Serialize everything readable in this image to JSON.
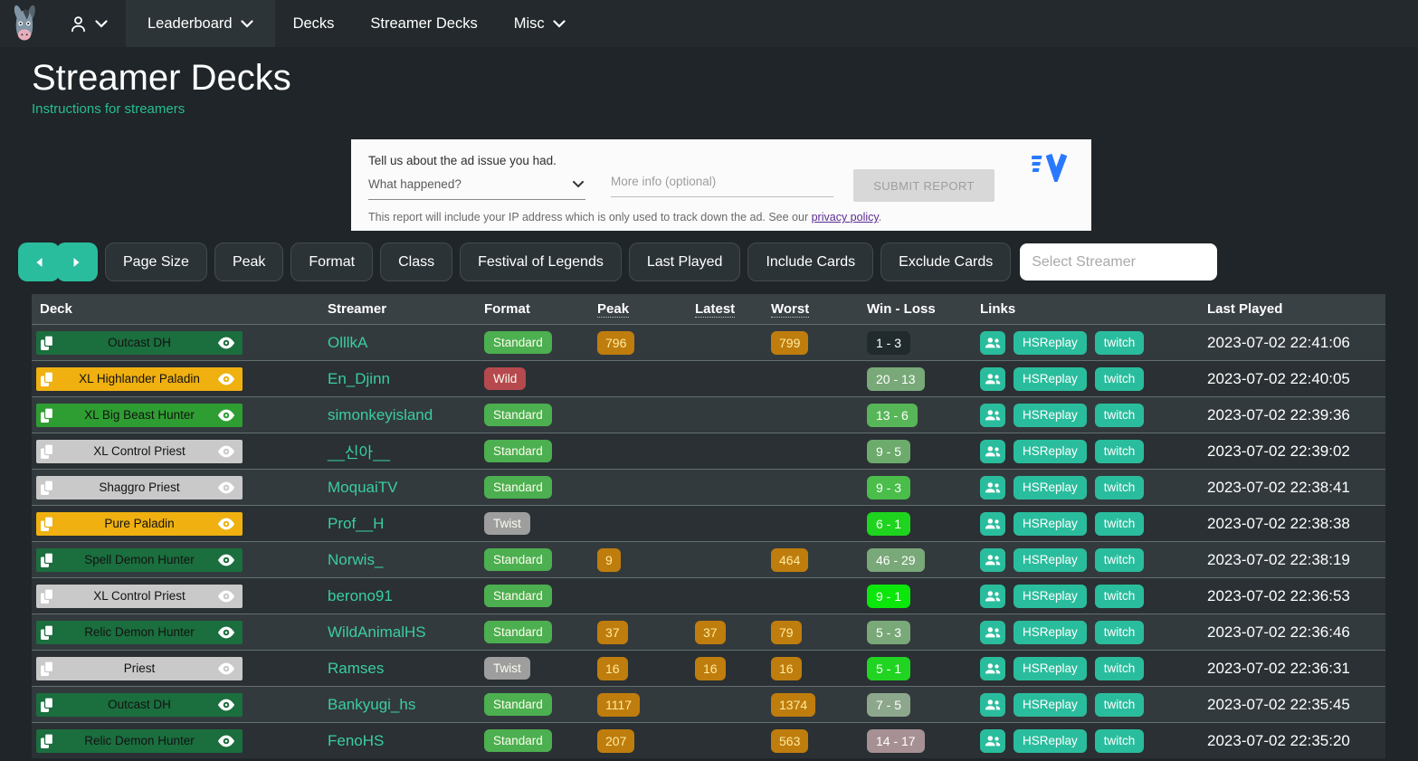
{
  "navbar": {
    "items": [
      {
        "label": "Leaderboard",
        "dropdown": true,
        "active": true
      },
      {
        "label": "Decks",
        "dropdown": false,
        "active": false
      },
      {
        "label": "Streamer Decks",
        "dropdown": false,
        "active": false
      },
      {
        "label": "Misc",
        "dropdown": true,
        "active": false
      }
    ]
  },
  "header": {
    "title": "Streamer Decks",
    "instructions_link": "Instructions for streamers"
  },
  "ad_report": {
    "prompt": "Tell us about the ad issue you had.",
    "select_placeholder": "What happened?",
    "input_placeholder": "More info (optional)",
    "submit_label": "SUBMIT REPORT",
    "disclaimer_prefix": "This report will include your IP address which is only used to track down the ad. See our ",
    "privacy_link": "privacy policy",
    "disclaimer_suffix": "."
  },
  "filters": {
    "buttons": [
      "Page Size",
      "Peak",
      "Format",
      "Class",
      "Festival of Legends",
      "Last Played",
      "Include Cards",
      "Exclude Cards"
    ],
    "streamer_placeholder": "Select Streamer"
  },
  "colors": {
    "accent_teal": "#2abd9d",
    "streamer_link": "#3acda2",
    "stat_pill_bg": "#bf7d0d",
    "stat_pill_text": "#ffeb9e",
    "format_standard": "#4caf50",
    "format_wild": "#b5494e",
    "format_twist": "#9e9e9e"
  },
  "table": {
    "columns": [
      "Deck",
      "Streamer",
      "Format",
      "Peak",
      "Latest",
      "Worst",
      "Win - Loss",
      "Links",
      "Last Played"
    ],
    "link_labels": {
      "hsreplay": "HSReplay",
      "twitch": "twitch"
    },
    "rows": [
      {
        "deck": "Outcast DH",
        "deck_color": "#1b6e3e",
        "streamer": "OlllkA",
        "format": "Standard",
        "format_color": "#4caf50",
        "peak": "796",
        "latest": "",
        "worst": "799",
        "win_loss": "1 - 3",
        "win_loss_color": "#212a2c",
        "last_played": "2023-07-02 22:41:06"
      },
      {
        "deck": "XL Highlander Paladin",
        "deck_color": "#efb010",
        "streamer": "En_Djinn",
        "format": "Wild",
        "format_color": "#b5494e",
        "peak": "",
        "latest": "",
        "worst": "",
        "win_loss": "20 - 13",
        "win_loss_color": "#79a879",
        "last_played": "2023-07-02 22:40:05"
      },
      {
        "deck": "XL Big Beast Hunter",
        "deck_color": "#2f9e32",
        "streamer": "simonkeyisland",
        "format": "Standard",
        "format_color": "#4caf50",
        "peak": "",
        "latest": "",
        "worst": "",
        "win_loss": "13 - 6",
        "win_loss_color": "#57b657",
        "last_played": "2023-07-02 22:39:36"
      },
      {
        "deck": "XL Control Priest",
        "deck_color": "#c9c9c9",
        "streamer": "__신아__",
        "format": "Standard",
        "format_color": "#4caf50",
        "peak": "",
        "latest": "",
        "worst": "",
        "win_loss": "9 - 5",
        "win_loss_color": "#6cab6c",
        "last_played": "2023-07-02 22:39:02"
      },
      {
        "deck": "Shaggro Priest",
        "deck_color": "#c9c9c9",
        "streamer": "MoquaiTV",
        "format": "Standard",
        "format_color": "#4caf50",
        "peak": "",
        "latest": "",
        "worst": "",
        "win_loss": "9 - 3",
        "win_loss_color": "#4abd4a",
        "last_played": "2023-07-02 22:38:41"
      },
      {
        "deck": "Pure Paladin",
        "deck_color": "#efb010",
        "streamer": "Prof__H",
        "format": "Twist",
        "format_color": "#9e9e9e",
        "peak": "",
        "latest": "",
        "worst": "",
        "win_loss": "6 - 1",
        "win_loss_color": "#1ed41e",
        "last_played": "2023-07-02 22:38:38"
      },
      {
        "deck": "Spell Demon Hunter",
        "deck_color": "#1b6e3e",
        "streamer": "Norwis_",
        "format": "Standard",
        "format_color": "#4caf50",
        "peak": "9",
        "latest": "",
        "worst": "464",
        "win_loss": "46 - 29",
        "win_loss_color": "#79a879",
        "last_played": "2023-07-02 22:38:19"
      },
      {
        "deck": "XL Control Priest",
        "deck_color": "#c9c9c9",
        "streamer": "berono91",
        "format": "Standard",
        "format_color": "#4caf50",
        "peak": "",
        "latest": "",
        "worst": "",
        "win_loss": "9 - 1",
        "win_loss_color": "#0be60b",
        "last_played": "2023-07-02 22:36:53"
      },
      {
        "deck": "Relic Demon Hunter",
        "deck_color": "#1b6e3e",
        "streamer": "WildAnimalHS",
        "format": "Standard",
        "format_color": "#4caf50",
        "peak": "37",
        "latest": "37",
        "worst": "79",
        "win_loss": "5 - 3",
        "win_loss_color": "#79a879",
        "last_played": "2023-07-02 22:36:46"
      },
      {
        "deck": "Priest",
        "deck_color": "#c9c9c9",
        "streamer": "Ramses",
        "format": "Twist",
        "format_color": "#9e9e9e",
        "peak": "16",
        "latest": "16",
        "worst": "16",
        "win_loss": "5 - 1",
        "win_loss_color": "#22d422",
        "last_played": "2023-07-02 22:36:31"
      },
      {
        "deck": "Outcast DH",
        "deck_color": "#1b6e3e",
        "streamer": "Bankyugi_hs",
        "format": "Standard",
        "format_color": "#4caf50",
        "peak": "1117",
        "latest": "",
        "worst": "1374",
        "win_loss": "7 - 5",
        "win_loss_color": "#8da78d",
        "last_played": "2023-07-02 22:35:45"
      },
      {
        "deck": "Relic Demon Hunter",
        "deck_color": "#1b6e3e",
        "streamer": "FenoHS",
        "format": "Standard",
        "format_color": "#4caf50",
        "peak": "207",
        "latest": "",
        "worst": "563",
        "win_loss": "14 - 17",
        "win_loss_color": "#a79093",
        "last_played": "2023-07-02 22:35:20"
      }
    ]
  }
}
